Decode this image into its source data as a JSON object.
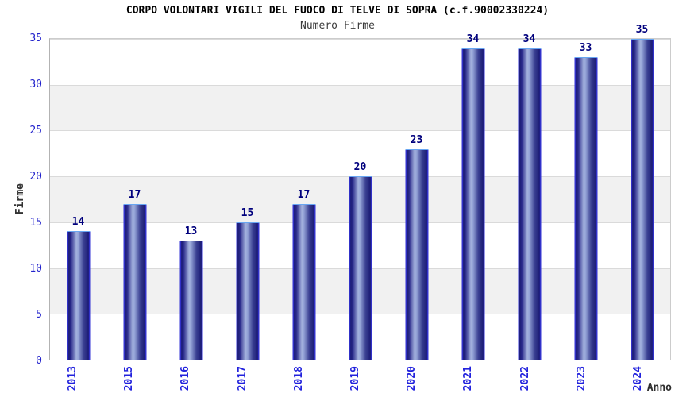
{
  "chart_data": {
    "type": "bar",
    "title": "CORPO VOLONTARI VIGILI DEL FUOCO DI TELVE DI SOPRA (c.f.90002330224)",
    "subtitle": "Numero Firme",
    "xlabel": "Anno",
    "ylabel": "Firme",
    "categories": [
      "2013",
      "2015",
      "2016",
      "2017",
      "2018",
      "2019",
      "2020",
      "2021",
      "2022",
      "2023",
      "2024"
    ],
    "values": [
      14,
      17,
      13,
      15,
      17,
      20,
      23,
      34,
      34,
      33,
      35
    ],
    "ylim": [
      0,
      35
    ],
    "yticks": [
      0,
      5,
      10,
      15,
      20,
      25,
      30,
      35
    ],
    "legend_position": "none",
    "grid": "horizontal gridlines every 5 units over alternating white and light-gray bands",
    "colors": {
      "bar_dark": "#1b1b74",
      "bar_highlight": "#a3b1dd",
      "bar_side_edge": "#3434d4",
      "bar_top_edge": "#68a6f2",
      "tick_labels": "#2222cc",
      "value_labels": "#00007d",
      "band_gray": "#f1f1f1",
      "title": "#000000",
      "subtitle": "#3d3d3d",
      "axis_titles": "#333333"
    }
  }
}
